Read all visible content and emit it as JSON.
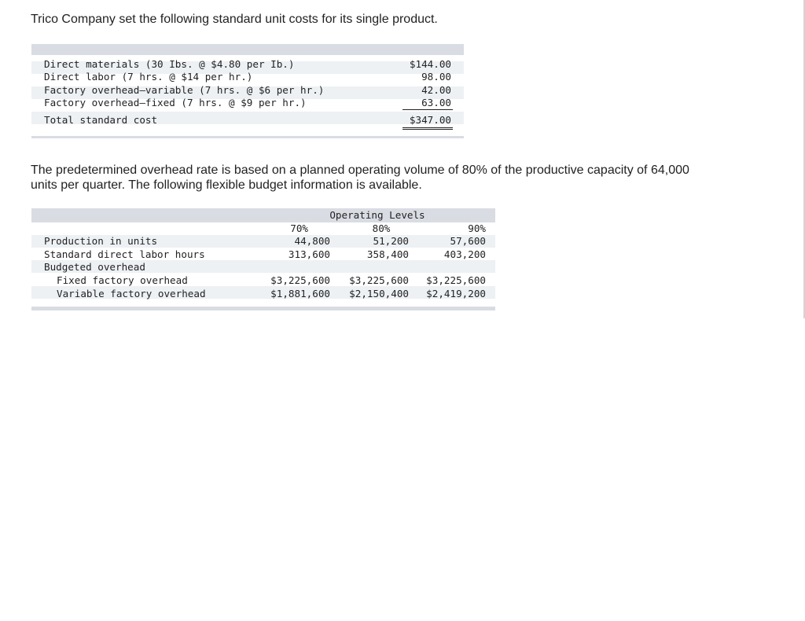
{
  "intro": "Trico Company set the following standard unit costs for its single product.",
  "standard_costs": {
    "rows": [
      {
        "label": "Direct materials (30 Ibs. @ $4.80 per Ib.)",
        "amount": "$144.00"
      },
      {
        "label": "Direct labor (7 hrs. @ $14 per hr.)",
        "amount": "98.00"
      },
      {
        "label": "Factory overhead—variable (7 hrs. @ $6 per hr.)",
        "amount": "42.00"
      },
      {
        "label": "Factory overhead—fixed (7 hrs. @ $9 per hr.)",
        "amount": "63.00"
      }
    ],
    "total": {
      "label": "Total standard cost",
      "amount": "$347.00"
    }
  },
  "paragraph": {
    "line1": "The predetermined overhead rate is based on a planned operating volume of 80% of the productive capacity of 64,000",
    "line2": "units per quarter. The following flexible budget information is available."
  },
  "flexible_budget": {
    "group_header": "Operating Levels",
    "levels": [
      "70%",
      "80%",
      "90%"
    ],
    "production_units": {
      "label": "Production in units",
      "values": [
        "44,800",
        "51,200",
        "57,600"
      ]
    },
    "direct_labor_hours": {
      "label": "Standard direct labor hours",
      "values": [
        "313,600",
        "358,400",
        "403,200"
      ]
    },
    "budgeted_overhead": {
      "label": "Budgeted overhead"
    },
    "fixed_overhead": {
      "label": "Fixed factory overhead",
      "values": [
        "$3,225,600",
        "$3,225,600",
        "$3,225,600"
      ]
    },
    "variable_overhead": {
      "label": "Variable factory overhead",
      "values": [
        "$1,881,600",
        "$2,150,400",
        "$2,419,200"
      ]
    }
  }
}
